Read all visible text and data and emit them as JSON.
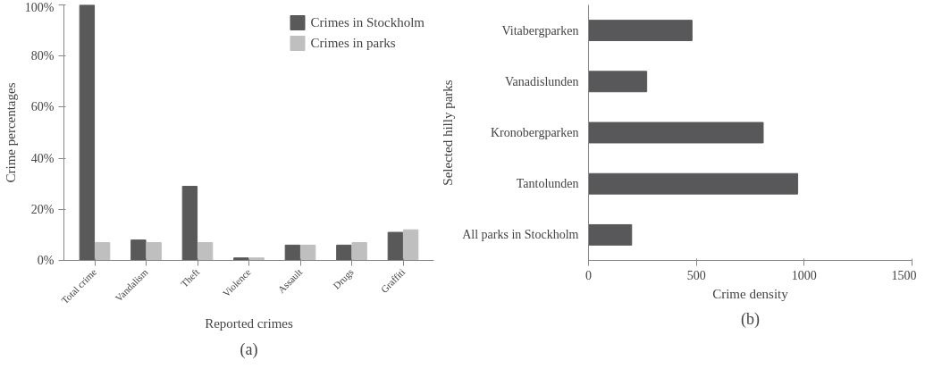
{
  "chart_data": [
    {
      "type": "bar",
      "xlabel": "Reported crimes",
      "ylabel": "Crime percentages",
      "categories": [
        "Total crime",
        "Vandalism",
        "Theft",
        "Violence",
        "Assault",
        "Drugs",
        "Graffiti"
      ],
      "series": [
        {
          "name": "Crimes in Stockholm",
          "color": "#595959",
          "values": [
            100,
            8,
            29,
            1,
            6,
            6,
            11
          ]
        },
        {
          "name": "Crimes in parks",
          "color": "#bfbfbf",
          "values": [
            7,
            7,
            7,
            1,
            6,
            7,
            12
          ]
        }
      ],
      "ylim": [
        0,
        100
      ],
      "yticks": [
        {
          "value": 0,
          "label": "0%"
        },
        {
          "value": 20,
          "label": "20%"
        },
        {
          "value": 40,
          "label": "40%"
        },
        {
          "value": 60,
          "label": "60%"
        },
        {
          "value": 80,
          "label": "80%"
        },
        {
          "value": 100,
          "label": "100%"
        }
      ],
      "legend": "top right",
      "grid": false,
      "annotations": [
        "(a)"
      ]
    },
    {
      "type": "bar",
      "orientation": "horizontal",
      "xlabel": "Crime density",
      "ylabel": "Selected hilly parks",
      "categories": [
        "Vitabergparken",
        "Vanadislunden",
        "Kronobergparken",
        "Tantolunden",
        "All parks in Stockholm"
      ],
      "values": [
        480,
        270,
        810,
        970,
        200
      ],
      "color": "#58585a",
      "xlim": [
        0,
        1500
      ],
      "xticks": [
        0,
        500,
        1000,
        1500
      ],
      "grid": false,
      "annotations": [
        "(b)"
      ]
    }
  ]
}
